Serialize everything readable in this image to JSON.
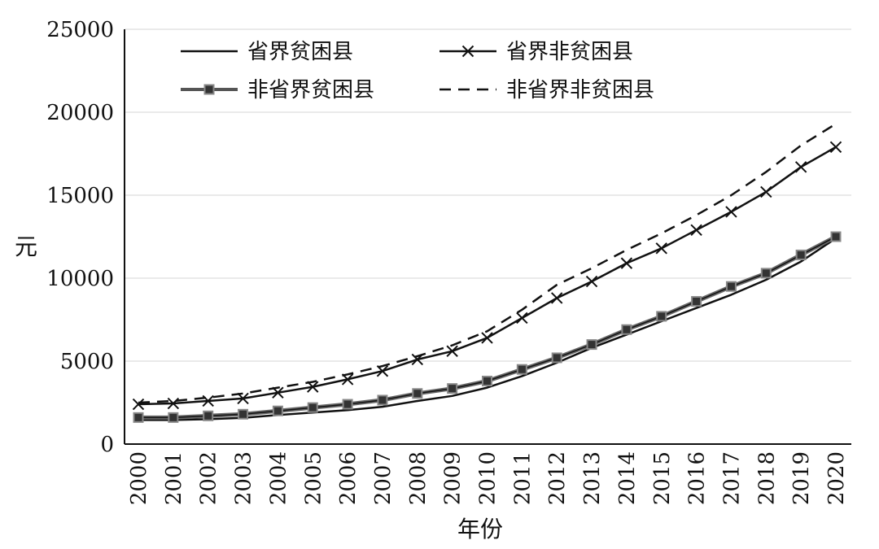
{
  "chart_data": {
    "type": "line",
    "title": "",
    "xlabel": "年份",
    "ylabel": "元",
    "x": [
      "2000",
      "2001",
      "2002",
      "2003",
      "2004",
      "2005",
      "2006",
      "2007",
      "2008",
      "2009",
      "2010",
      "2011",
      "2012",
      "2013",
      "2014",
      "2015",
      "2016",
      "2017",
      "2018",
      "2019",
      "2020"
    ],
    "yticks": [
      "0",
      "5000",
      "10000",
      "15000",
      "20000",
      "25000"
    ],
    "ylim": [
      0,
      25000
    ],
    "grid": true,
    "legend_position": "top",
    "series": [
      {
        "name": "省界贫困县",
        "style": "solid",
        "marker": "none",
        "values": [
          1450,
          1450,
          1500,
          1580,
          1750,
          1900,
          2050,
          2250,
          2600,
          2900,
          3400,
          4100,
          4900,
          5800,
          6600,
          7400,
          8200,
          9000,
          9900,
          11000,
          12400
        ]
      },
      {
        "name": "省界非贫困县",
        "style": "solid",
        "marker": "x",
        "values": [
          2400,
          2450,
          2600,
          2750,
          3100,
          3450,
          3900,
          4400,
          5100,
          5600,
          6400,
          7600,
          8800,
          9800,
          10900,
          11800,
          12900,
          14000,
          15200,
          16700,
          17900
        ]
      },
      {
        "name": "非省界贫困县",
        "style": "solid",
        "marker": "square",
        "values": [
          1600,
          1600,
          1700,
          1800,
          2000,
          2200,
          2400,
          2650,
          3050,
          3350,
          3800,
          4500,
          5200,
          6000,
          6900,
          7700,
          8600,
          9500,
          10300,
          11400,
          12500
        ]
      },
      {
        "name": "非省界非贫困县",
        "style": "dashed",
        "marker": "none",
        "values": [
          2500,
          2600,
          2800,
          3050,
          3400,
          3750,
          4200,
          4700,
          5300,
          5950,
          6800,
          8100,
          9600,
          10600,
          11700,
          12700,
          13800,
          15000,
          16400,
          18000,
          19300
        ]
      }
    ]
  }
}
